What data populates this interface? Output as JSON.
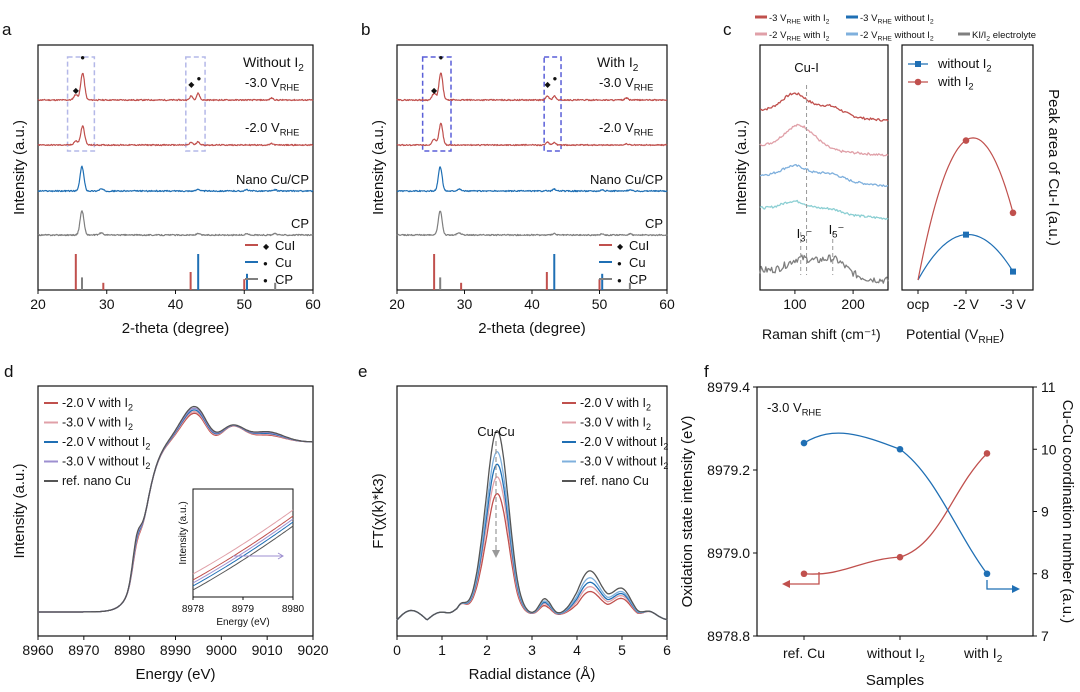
{
  "colors": {
    "red": "#c0504d",
    "pink": "#e0a0a8",
    "blue": "#1f6fb4",
    "lightblue": "#7fb0dd",
    "teal": "#8ccfd3",
    "purple": "#9d8fd0",
    "gray": "#7f7f7f",
    "dark": "#555555",
    "box": "#8a8fe0"
  },
  "panels": {
    "a": {
      "letter": "a",
      "note_prefix": "Without I",
      "note_sub": "2",
      "curve_labels": [
        {
          "text": "-3.0 V",
          "sub": "RHE"
        },
        {
          "text": "-2.0 V",
          "sub": "RHE"
        },
        {
          "text": "Nano Cu/CP",
          "sub": ""
        },
        {
          "text": "CP",
          "sub": ""
        }
      ],
      "legend": [
        "CuI",
        "Cu",
        "CP"
      ]
    },
    "b": {
      "letter": "b",
      "note_prefix": "With I",
      "note_sub": "2",
      "curve_labels": [
        {
          "text": "-3.0 V",
          "sub": "RHE"
        },
        {
          "text": "-2.0 V",
          "sub": "RHE"
        },
        {
          "text": "Nano Cu/CP",
          "sub": ""
        },
        {
          "text": "CP",
          "sub": ""
        }
      ],
      "legend": [
        "CuI",
        "Cu",
        "CP"
      ]
    },
    "c": {
      "letter": "c",
      "top_legend": [
        {
          "prefix": "-3 V",
          "sub": "RHE",
          "suffix": " with I",
          "sub2": "2"
        },
        {
          "prefix": "-3 V",
          "sub": "RHE",
          "suffix": " without I",
          "sub2": "2"
        },
        {
          "prefix": "-2 V",
          "sub": "RHE",
          "suffix": " with I",
          "sub2": "2"
        },
        {
          "prefix": "-2 V",
          "sub": "RHE",
          "suffix": " without I",
          "sub2": "2"
        },
        {
          "prefix": "KI/I",
          "sub": "2",
          "suffix": " electrolyte",
          "sub2": ""
        }
      ],
      "annotations": [
        "Cu-I",
        "I",
        "I"
      ],
      "ion_sub": [
        "3",
        "5"
      ],
      "right_legend": [
        {
          "text": "without I",
          "sub": "2"
        },
        {
          "text": "with I",
          "sub": "2"
        }
      ]
    },
    "d": {
      "letter": "d",
      "legend": [
        {
          "text": "-2.0 V with I",
          "sub": "2"
        },
        {
          "text": "-3.0 V with I",
          "sub": "2"
        },
        {
          "text": "-2.0 V without I",
          "sub": "2"
        },
        {
          "text": "-3.0 V without I",
          "sub": "2"
        },
        {
          "text": "ref. nano Cu",
          "sub": ""
        }
      ],
      "inset_ylabel": "Intensity (a.u.)",
      "inset_xlabel": "Energy (eV)"
    },
    "e": {
      "letter": "e",
      "annotation": "Cu-Cu",
      "legend": [
        {
          "text": "-2.0 V with I",
          "sub": "2"
        },
        {
          "text": "-3.0 V with I",
          "sub": "2"
        },
        {
          "text": "-2.0 V without I",
          "sub": "2"
        },
        {
          "text": "-3.0 V without I",
          "sub": "2"
        },
        {
          "text": "ref. nano Cu",
          "sub": ""
        }
      ]
    },
    "f": {
      "letter": "f",
      "note": "-3.0 V",
      "note_sub": "RHE"
    }
  },
  "chart_data": [
    {
      "id": "a",
      "type": "line",
      "title": "Without I2",
      "xlabel": "2-theta (degree)",
      "ylabel": "Intensity (a.u.)",
      "xlim": [
        20,
        60
      ],
      "xticks": [
        20,
        30,
        40,
        50,
        60
      ],
      "series": [
        {
          "name": "-3.0 V RHE",
          "color": "#c0504d",
          "peaks": [
            [
              25.5,
              4
            ],
            [
              26.5,
              20
            ],
            [
              42.3,
              3
            ],
            [
              43.3,
              5
            ],
            [
              54,
              1.5
            ]
          ]
        },
        {
          "name": "-2.0 V RHE",
          "color": "#c0504d",
          "peaks": [
            [
              25.5,
              3
            ],
            [
              26.5,
              14
            ],
            [
              42.3,
              2
            ],
            [
              43.3,
              2.5
            ],
            [
              54,
              1
            ]
          ]
        },
        {
          "name": "Nano Cu/CP",
          "color": "#1f6fb4",
          "peaks": [
            [
              26.4,
              18
            ],
            [
              29.2,
              1.5
            ],
            [
              43.3,
              1.5
            ],
            [
              50.4,
              1
            ],
            [
              54.5,
              1
            ]
          ]
        },
        {
          "name": "CP",
          "color": "#7f7f7f",
          "peaks": [
            [
              26.4,
              18
            ],
            [
              29.2,
              1.5
            ],
            [
              43.3,
              1
            ],
            [
              50.4,
              1
            ],
            [
              54.5,
              1
            ]
          ]
        }
      ],
      "reference_lines": [
        {
          "name": "CuI",
          "color": "#c0504d",
          "positions": [
            [
              25.5,
              1.0
            ],
            [
              29.5,
              0.2
            ],
            [
              42.2,
              0.5
            ],
            [
              50.0,
              0.3
            ]
          ]
        },
        {
          "name": "Cu",
          "color": "#1f6fb4",
          "positions": [
            [
              43.3,
              1.0
            ],
            [
              50.4,
              0.45
            ]
          ]
        },
        {
          "name": "CP",
          "color": "#7f7f7f",
          "positions": [
            [
              26.4,
              0.35
            ],
            [
              54.5,
              0.2
            ]
          ]
        }
      ],
      "highlight_regions": [
        [
          24.3,
          28.2
        ],
        [
          41.5,
          44.3
        ]
      ]
    },
    {
      "id": "b",
      "type": "line",
      "title": "With I2",
      "xlabel": "2-theta (degree)",
      "ylabel": "Intensity (a.u.)",
      "xlim": [
        20,
        60
      ],
      "xticks": [
        20,
        30,
        40,
        50,
        60
      ],
      "series": [
        {
          "name": "-3.0 V RHE",
          "color": "#c0504d",
          "peaks": [
            [
              25.5,
              5
            ],
            [
              26.5,
              20
            ],
            [
              42.3,
              3
            ],
            [
              43.3,
              3
            ],
            [
              54,
              1.5
            ]
          ]
        },
        {
          "name": "-2.0 V RHE",
          "color": "#c0504d",
          "peaks": [
            [
              25.5,
              4
            ],
            [
              26.5,
              16
            ],
            [
              42.3,
              2
            ],
            [
              43.3,
              2
            ],
            [
              54,
              1
            ]
          ]
        },
        {
          "name": "Nano Cu/CP",
          "color": "#1f6fb4",
          "peaks": [
            [
              26.4,
              18
            ],
            [
              29.2,
              1.5
            ],
            [
              43.3,
              1.5
            ],
            [
              50.4,
              1
            ],
            [
              54.5,
              1
            ]
          ]
        },
        {
          "name": "CP",
          "color": "#7f7f7f",
          "peaks": [
            [
              26.4,
              18
            ],
            [
              29.2,
              1.5
            ],
            [
              43.3,
              1
            ],
            [
              50.4,
              1
            ],
            [
              54.5,
              1
            ]
          ]
        }
      ],
      "reference_lines": [
        {
          "name": "CuI",
          "color": "#c0504d",
          "positions": [
            [
              25.5,
              1.0
            ],
            [
              29.5,
              0.2
            ],
            [
              42.2,
              0.5
            ],
            [
              50.0,
              0.3
            ]
          ]
        },
        {
          "name": "Cu",
          "color": "#1f6fb4",
          "positions": [
            [
              43.3,
              1.0
            ],
            [
              50.4,
              0.45
            ]
          ]
        },
        {
          "name": "CP",
          "color": "#7f7f7f",
          "positions": [
            [
              26.4,
              0.35
            ],
            [
              54.5,
              0.2
            ]
          ]
        }
      ],
      "highlight_regions": [
        [
          23.8,
          28.0
        ],
        [
          41.8,
          44.3
        ]
      ]
    },
    {
      "id": "c-left",
      "type": "line",
      "xlabel": "Raman shift (cm-1)",
      "ylabel": "Intensity (a.u.)",
      "xlim": [
        40,
        260
      ],
      "xticks": [
        100,
        200
      ],
      "series": [
        {
          "name": "-3 V RHE with I2",
          "color": "#c0504d",
          "peaks": [
            [
              100,
              1.6
            ],
            [
              160,
              0.8
            ]
          ]
        },
        {
          "name": "-2 V RHE with I2",
          "color": "#e0a0a8",
          "peaks": [
            [
              100,
              1.4
            ],
            [
              125,
              0.8
            ]
          ]
        },
        {
          "name": "-3 V RHE without I2",
          "color": "#7fb0dd",
          "peaks": [
            [
              100,
              1.0
            ],
            [
              160,
              0.6
            ]
          ]
        },
        {
          "name": "-2 V RHE without I2",
          "color": "#8ccfd3",
          "peaks": [
            [
              100,
              0.8
            ],
            [
              160,
              0.4
            ]
          ]
        },
        {
          "name": "KI/I2 electrolyte",
          "color": "#7f7f7f",
          "peaks": [
            [
              110,
              1.2
            ],
            [
              165,
              1.4
            ]
          ]
        }
      ],
      "marker_lines": [
        120,
        110,
        165
      ]
    },
    {
      "id": "c-right",
      "type": "line",
      "xlabel": "Potential (VRHE)",
      "ylabel": "Peak area of Cu-I (a.u.)",
      "categories": [
        "ocp",
        "-2 V",
        "-3 V"
      ],
      "series": [
        {
          "name": "without I2",
          "color": "#1f6fb4",
          "values": [
            0.0,
            0.27,
            0.05
          ]
        },
        {
          "name": "with I2",
          "color": "#c0504d",
          "values": [
            0.0,
            0.83,
            0.4
          ]
        }
      ],
      "ylim": [
        0,
        1
      ]
    },
    {
      "id": "d",
      "type": "line",
      "xlabel": "Energy (eV)",
      "ylabel": "Intensity (a.u.)",
      "xlim": [
        8960,
        9020
      ],
      "xticks": [
        8960,
        8970,
        8980,
        8990,
        9000,
        9010,
        9020
      ],
      "series": [
        {
          "name": "-2.0 V with I2",
          "color": "#c0504d"
        },
        {
          "name": "-3.0 V with I2",
          "color": "#e0a0a8"
        },
        {
          "name": "-2.0 V without I2",
          "color": "#1f6fb4"
        },
        {
          "name": "-3.0 V without I2",
          "color": "#9d8fd0"
        },
        {
          "name": "ref. nano Cu",
          "color": "#555555"
        }
      ],
      "inset": {
        "xlim": [
          8978,
          8980
        ],
        "xticks": [
          8978,
          8979,
          8980
        ]
      }
    },
    {
      "id": "e",
      "type": "line",
      "xlabel": "Radial distance (Å)",
      "ylabel": "FT(χ(k)*k3)",
      "xlim": [
        0,
        6
      ],
      "xticks": [
        0,
        1,
        2,
        3,
        4,
        5,
        6
      ],
      "series": [
        {
          "name": "-2.0 V with I2",
          "color": "#c0504d",
          "peak_height": 0.58
        },
        {
          "name": "-3.0 V with I2",
          "color": "#e0a0a8",
          "peak_height": 0.66
        },
        {
          "name": "-2.0 V without I2",
          "color": "#1f6fb4",
          "peak_height": 0.72
        },
        {
          "name": "-3.0 V without I2",
          "color": "#7fb0dd",
          "peak_height": 0.78
        },
        {
          "name": "ref. nano Cu",
          "color": "#555555",
          "peak_height": 0.88
        }
      ],
      "annotation_x": 2.2
    },
    {
      "id": "f",
      "type": "line",
      "xlabel": "Samples",
      "ylabel": "Oxidation state intensity (eV)",
      "ylabel_right": "Cu-Cu coordination number (a.u.)",
      "categories": [
        "ref. Cu",
        "without I2",
        "with I2"
      ],
      "ylim": [
        8978.8,
        8979.4
      ],
      "yticks": [
        8978.8,
        8979.0,
        8979.2,
        8979.4
      ],
      "ylim_right": [
        7,
        11
      ],
      "yticks_right": [
        7,
        8,
        9,
        10,
        11
      ],
      "series": [
        {
          "name": "Oxidation state",
          "axis": "left",
          "color": "#c0504d",
          "values": [
            8978.95,
            8978.99,
            8979.24
          ]
        },
        {
          "name": "Cu-Cu CN",
          "axis": "right",
          "color": "#1f6fb4",
          "values": [
            10.1,
            10.0,
            8.0
          ]
        }
      ]
    }
  ]
}
